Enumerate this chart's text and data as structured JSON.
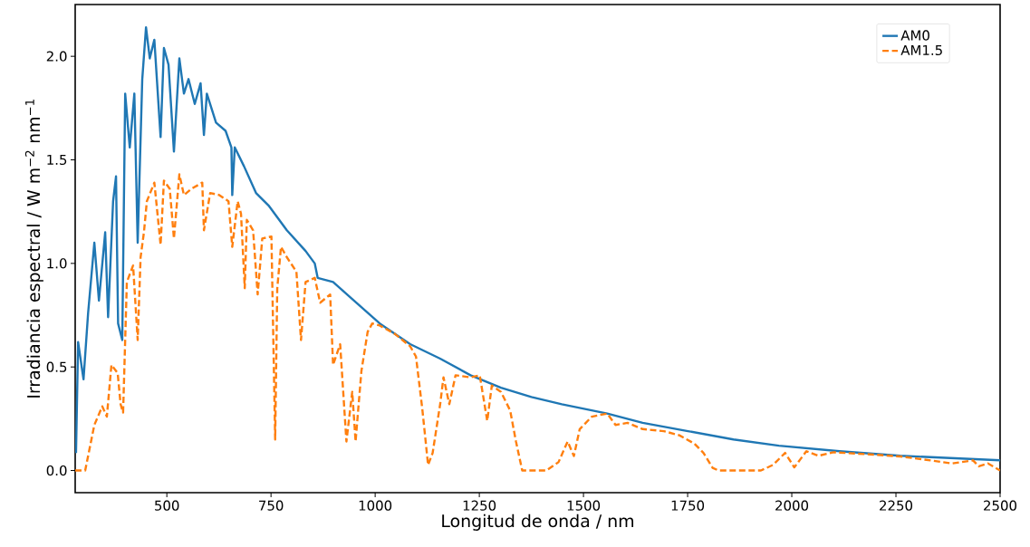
{
  "chart_data": {
    "type": "line",
    "xlabel": "Longitud de onda / nm",
    "ylabel": "Irradiancia espectral / W m$^{−2}$ nm$^{−1}$",
    "xlim": [
      280,
      2500
    ],
    "ylim": [
      -0.107,
      2.25
    ],
    "xticks": [
      500,
      750,
      1000,
      1250,
      1500,
      1750,
      2000,
      2250,
      2500
    ],
    "yticks": [
      {
        "value": 0,
        "label": "0.0"
      },
      {
        "value": 0.5,
        "label": "0.5"
      },
      {
        "value": 1,
        "label": "1.0"
      },
      {
        "value": 1.5,
        "label": "1.5"
      },
      {
        "value": 2,
        "label": "2.0"
      }
    ],
    "grid": false,
    "legend": "top right",
    "series": [
      {
        "name": "AM0",
        "color": "#1f77b4",
        "line_style": "solid",
        "x": [
          282,
          287,
          300,
          311,
          326,
          337,
          352,
          359,
          371,
          378,
          383,
          393,
          400,
          411,
          422,
          430,
          441,
          450,
          459,
          470,
          485,
          493,
          504,
          517,
          530,
          541,
          552,
          567,
          581,
          589,
          596,
          618,
          641,
          655,
          657,
          663,
          685,
          714,
          744,
          788,
          833,
          855,
          862,
          899,
          938,
          1011,
          1084,
          1156,
          1229,
          1302,
          1375,
          1448,
          1557,
          1642,
          1751,
          1860,
          1969,
          2115,
          2260,
          2500
        ],
        "values": [
          0.084,
          0.62,
          0.44,
          0.76,
          1.1,
          0.82,
          1.15,
          0.74,
          1.3,
          1.42,
          0.71,
          0.63,
          1.82,
          1.56,
          1.82,
          1.1,
          1.89,
          2.14,
          1.99,
          2.08,
          1.61,
          2.04,
          1.96,
          1.54,
          1.99,
          1.82,
          1.89,
          1.77,
          1.87,
          1.62,
          1.82,
          1.68,
          1.64,
          1.56,
          1.33,
          1.56,
          1.47,
          1.34,
          1.28,
          1.16,
          1.06,
          1.0,
          0.93,
          0.91,
          0.84,
          0.71,
          0.61,
          0.54,
          0.46,
          0.4,
          0.355,
          0.32,
          0.275,
          0.23,
          0.19,
          0.15,
          0.12,
          0.093,
          0.071,
          0.049
        ]
      },
      {
        "name": "AM1.5",
        "color": "#ff7f0e",
        "line_style": "dashed",
        "x": [
          280,
          304,
          326,
          345,
          356,
          367,
          382,
          389,
          395,
          400,
          404,
          419,
          430,
          437,
          445,
          452,
          470,
          485,
          493,
          507,
          517,
          530,
          541,
          559,
          585,
          589,
          604,
          626,
          648,
          657,
          670,
          678,
          687,
          692,
          707,
          718,
          729,
          751,
          760,
          765,
          774,
          788,
          811,
          822,
          833,
          855,
          868,
          892,
          899,
          916,
          931,
          945,
          953,
          967,
          982,
          993,
          1011,
          1047,
          1084,
          1098,
          1113,
          1127,
          1138,
          1156,
          1164,
          1178,
          1193,
          1229,
          1251,
          1269,
          1280,
          1302,
          1324,
          1338,
          1353,
          1411,
          1440,
          1462,
          1477,
          1491,
          1520,
          1557,
          1577,
          1606,
          1642,
          1693,
          1730,
          1766,
          1788,
          1810,
          1824,
          1926,
          1955,
          1984,
          2006,
          2035,
          2064,
          2100,
          2187,
          2260,
          2333,
          2384,
          2435,
          2449,
          2471,
          2500
        ],
        "values": [
          0,
          0,
          0.22,
          0.31,
          0.26,
          0.51,
          0.47,
          0.32,
          0.28,
          0.63,
          0.91,
          0.99,
          0.63,
          1.03,
          1.15,
          1.3,
          1.39,
          1.09,
          1.4,
          1.36,
          1.12,
          1.43,
          1.33,
          1.36,
          1.39,
          1.16,
          1.34,
          1.33,
          1.3,
          1.08,
          1.3,
          1.24,
          0.88,
          1.21,
          1.16,
          0.85,
          1.12,
          1.13,
          0.15,
          0.88,
          1.08,
          1.03,
          0.96,
          0.63,
          0.91,
          0.93,
          0.81,
          0.85,
          0.51,
          0.61,
          0.14,
          0.38,
          0.14,
          0.48,
          0.67,
          0.71,
          0.7,
          0.66,
          0.6,
          0.55,
          0.3,
          0.027,
          0.085,
          0.32,
          0.45,
          0.32,
          0.46,
          0.45,
          0.46,
          0.24,
          0.41,
          0.38,
          0.29,
          0.14,
          0,
          0,
          0.04,
          0.14,
          0.07,
          0.2,
          0.26,
          0.275,
          0.22,
          0.23,
          0.2,
          0.19,
          0.17,
          0.13,
          0.085,
          0.013,
          0,
          0,
          0.027,
          0.085,
          0.015,
          0.093,
          0.071,
          0.088,
          0.078,
          0.068,
          0.049,
          0.034,
          0.049,
          0.02,
          0.034,
          0
        ]
      }
    ]
  }
}
